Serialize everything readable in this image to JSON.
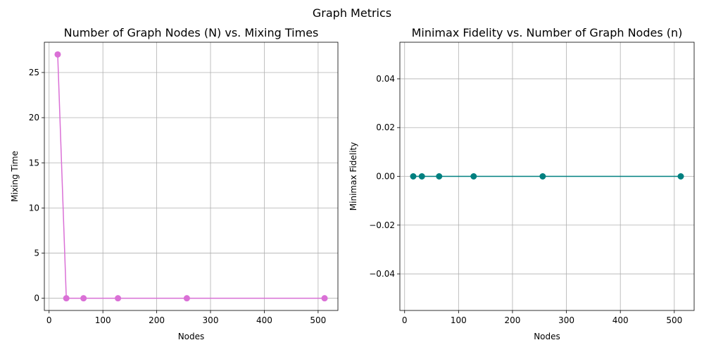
{
  "figure": {
    "title": "Graph Metrics"
  },
  "chart_data": [
    {
      "type": "line",
      "title": "Number of Graph Nodes (N) vs. Mixing Times",
      "xlabel": "Nodes",
      "ylabel": "Mixing Time",
      "x": [
        16,
        32,
        64,
        128,
        256,
        512
      ],
      "series": [
        {
          "values": [
            27,
            0,
            0,
            0,
            0,
            0
          ],
          "color": "#da70d6"
        }
      ],
      "xlim": [
        -8.8,
        536.8
      ],
      "ylim": [
        -1.35,
        28.35
      ],
      "xticks": [
        0,
        100,
        200,
        300,
        400,
        500
      ],
      "yticks": [
        0,
        5,
        10,
        15,
        20,
        25
      ],
      "xtick_labels": [
        "0",
        "100",
        "200",
        "300",
        "400",
        "500"
      ],
      "ytick_labels": [
        "0",
        "5",
        "10",
        "15",
        "20",
        "25"
      ],
      "grid": true,
      "marker": "circle"
    },
    {
      "type": "line",
      "title": "Minimax Fidelity vs. Number of Graph Nodes (n)",
      "xlabel": "Nodes",
      "ylabel": "Minimax Fidelity",
      "x": [
        16,
        32,
        64,
        128,
        256,
        512
      ],
      "series": [
        {
          "values": [
            0,
            0,
            0,
            0,
            0,
            0
          ],
          "color": "#008080"
        }
      ],
      "xlim": [
        -8.8,
        536.8
      ],
      "ylim": [
        -0.055,
        0.055
      ],
      "xticks": [
        0,
        100,
        200,
        300,
        400,
        500
      ],
      "yticks": [
        -0.04,
        -0.02,
        0.0,
        0.02,
        0.04
      ],
      "xtick_labels": [
        "0",
        "100",
        "200",
        "300",
        "400",
        "500"
      ],
      "ytick_labels": [
        "−0.04",
        "−0.02",
        "0.00",
        "0.02",
        "0.04"
      ],
      "grid": true,
      "marker": "circle"
    }
  ]
}
